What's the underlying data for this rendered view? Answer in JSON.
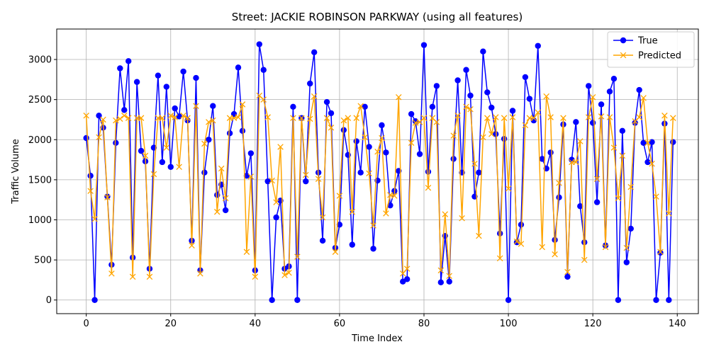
{
  "chart_data": {
    "type": "line",
    "title": "Street: JACKIE ROBINSON PARKWAY (using all features)",
    "xlabel": "Time Index",
    "ylabel": "Traffic Volume",
    "xlim": [
      -7,
      145
    ],
    "ylim": [
      -170,
      3380
    ],
    "x_ticks": [
      0,
      20,
      40,
      60,
      80,
      100,
      120,
      140
    ],
    "y_ticks": [
      0,
      500,
      1000,
      1500,
      2000,
      2500,
      3000
    ],
    "grid": true,
    "legend_position": "top-right",
    "x_start": 0,
    "series": [
      {
        "name": "True",
        "color": "#0000ff",
        "marker": "circle",
        "values": [
          2020,
          1550,
          0,
          2300,
          2150,
          1290,
          440,
          1960,
          2890,
          2370,
          2980,
          530,
          2720,
          1860,
          1730,
          390,
          1900,
          2800,
          1720,
          2660,
          1660,
          2390,
          2290,
          2850,
          2240,
          740,
          2770,
          370,
          1590,
          2000,
          2420,
          1310,
          1440,
          1120,
          2080,
          2320,
          2900,
          2110,
          1550,
          1830,
          370,
          3190,
          2870,
          1480,
          0,
          1030,
          1240,
          390,
          420,
          2410,
          0,
          2270,
          1480,
          2700,
          3090,
          1590,
          740,
          2470,
          2330,
          650,
          940,
          2120,
          1810,
          690,
          1980,
          1590,
          2410,
          1910,
          640,
          1490,
          2180,
          1840,
          1180,
          1360,
          1610,
          230,
          260,
          2320,
          2230,
          1820,
          3180,
          1600,
          2410,
          2670,
          220,
          800,
          230,
          1760,
          2740,
          1590,
          2870,
          2550,
          1290,
          1590,
          3100,
          2590,
          2400,
          2070,
          830,
          2010,
          0,
          2360,
          720,
          940,
          2780,
          2510,
          2240,
          3170,
          1760,
          1640,
          1840,
          750,
          1280,
          2190,
          290,
          1750,
          2220,
          1170,
          720,
          2670,
          2210,
          1220,
          2440,
          680,
          2600,
          2760,
          0,
          2110,
          470,
          890,
          2210,
          2620,
          1960,
          1720,
          1970,
          0,
          590,
          2200,
          0,
          1970
        ]
      },
      {
        "name": "Predicted",
        "color": "#ffa500",
        "marker": "x",
        "values": [
          2300,
          1360,
          1010,
          2030,
          2250,
          1280,
          330,
          2240,
          2260,
          2300,
          2270,
          290,
          2270,
          2270,
          1800,
          290,
          1570,
          2270,
          2270,
          1900,
          2300,
          2280,
          1660,
          2300,
          2270,
          680,
          2420,
          330,
          1950,
          2220,
          2240,
          1100,
          1640,
          1270,
          2270,
          2270,
          2280,
          2440,
          600,
          1540,
          290,
          2550,
          2500,
          2280,
          1490,
          1220,
          1910,
          310,
          340,
          2270,
          540,
          2270,
          1560,
          2260,
          2540,
          1510,
          1030,
          2270,
          2150,
          600,
          1300,
          2240,
          2270,
          1100,
          2270,
          2420,
          2030,
          1580,
          930,
          1850,
          2020,
          1080,
          1310,
          1300,
          2530,
          330,
          390,
          1960,
          2210,
          2220,
          2270,
          1400,
          2270,
          2220,
          370,
          1070,
          300,
          2050,
          2300,
          1020,
          2410,
          2380,
          1700,
          800,
          2030,
          2270,
          2070,
          2280,
          520,
          2270,
          1390,
          2280,
          730,
          700,
          2180,
          2270,
          2270,
          2340,
          660,
          2540,
          2280,
          570,
          1460,
          2270,
          350,
          1720,
          1720,
          1980,
          500,
          2280,
          2530,
          1510,
          2290,
          660,
          2280,
          1900,
          1270,
          1800,
          650,
          1410,
          2230,
          2280,
          2520,
          1960,
          1700,
          1290,
          600,
          2300,
          1080,
          2270
        ]
      }
    ]
  }
}
